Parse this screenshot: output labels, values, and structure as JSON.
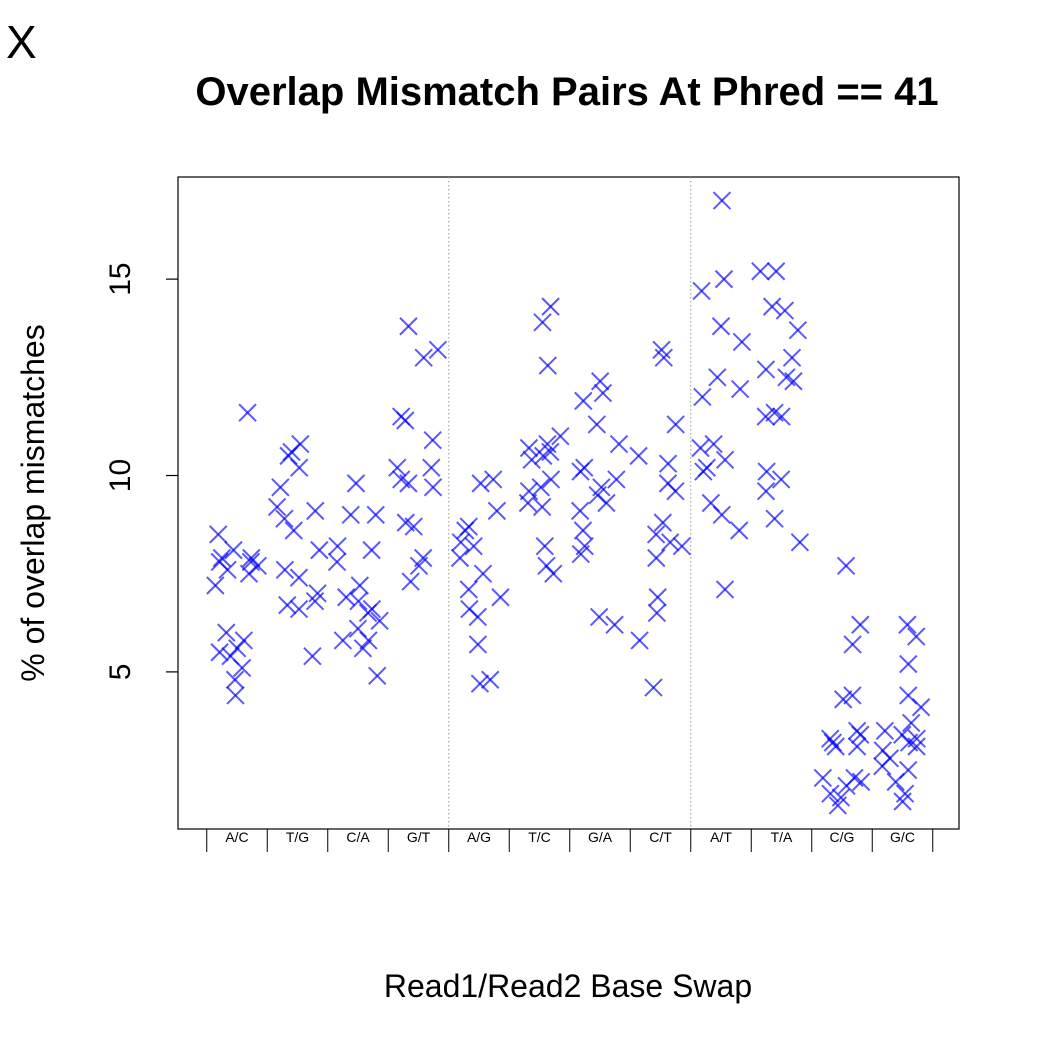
{
  "panel_letter": "X",
  "chart_data": {
    "type": "scatter",
    "title": "Overlap Mismatch Pairs At Phred == 41",
    "xlabel": "Read1/Read2 Base Swap",
    "ylabel": "% of overlap mismatches",
    "marker": "x",
    "marker_color": "#0000ff",
    "grid": false,
    "group_separators_after": [
      "G/T",
      "C/T"
    ],
    "ylim": [
      1.0,
      17.6
    ],
    "yticks": [
      5,
      10,
      15
    ],
    "categories": [
      "A/C",
      "T/G",
      "C/A",
      "G/T",
      "A/G",
      "T/C",
      "G/A",
      "C/T",
      "A/T",
      "T/A",
      "C/G",
      "G/C"
    ],
    "series": [
      {
        "values": [
          [
            11.6,
            8.5,
            8.1,
            7.9,
            7.9,
            7.8,
            7.8,
            7.7,
            7.6,
            7.5,
            7.2,
            6.0,
            5.8,
            5.6,
            5.5,
            5.4,
            5.1,
            4.8,
            4.4
          ],
          [
            10.8,
            10.6,
            10.5,
            10.2,
            9.7,
            9.2,
            9.1,
            8.9,
            8.6,
            8.1,
            7.6,
            7.4,
            7.0,
            6.8,
            6.7,
            6.6,
            5.4
          ],
          [
            9.8,
            9.0,
            9.0,
            8.2,
            8.1,
            7.8,
            7.2,
            6.9,
            6.8,
            6.6,
            6.5,
            6.3,
            6.1,
            5.8,
            5.8,
            5.6,
            4.9
          ],
          [
            13.8,
            13.2,
            13.0,
            11.5,
            11.4,
            10.9,
            10.2,
            10.2,
            9.9,
            9.8,
            9.7,
            8.8,
            8.7,
            7.9,
            7.7,
            7.3
          ],
          [
            9.9,
            9.8,
            9.1,
            8.7,
            8.6,
            8.3,
            8.2,
            7.9,
            7.5,
            7.1,
            6.9,
            6.6,
            6.4,
            5.7,
            4.8,
            4.7
          ],
          [
            14.3,
            13.9,
            12.8,
            11.0,
            10.8,
            10.7,
            10.6,
            10.5,
            10.4,
            9.9,
            9.7,
            9.6,
            9.3,
            9.2,
            8.2,
            7.7,
            7.5
          ],
          [
            12.4,
            12.1,
            11.9,
            11.3,
            10.8,
            10.2,
            10.1,
            9.9,
            9.7,
            9.5,
            9.3,
            9.1,
            8.6,
            8.2,
            8.0,
            6.4,
            6.2
          ],
          [
            13.2,
            13.0,
            11.3,
            10.5,
            10.3,
            9.8,
            9.6,
            8.8,
            8.5,
            8.3,
            8.2,
            7.9,
            6.9,
            6.5,
            5.8,
            4.6
          ],
          [
            17.0,
            15.0,
            14.7,
            13.8,
            13.4,
            12.5,
            12.2,
            12.0,
            10.8,
            10.7,
            10.4,
            10.2,
            10.1,
            9.3,
            9.0,
            8.6,
            7.1
          ],
          [
            15.2,
            15.2,
            14.3,
            14.2,
            13.7,
            13.0,
            12.7,
            12.5,
            12.4,
            11.6,
            11.5,
            11.5,
            10.1,
            9.9,
            9.6,
            8.9,
            8.3
          ],
          [
            7.7,
            6.2,
            5.7,
            4.4,
            4.3,
            3.5,
            3.4,
            3.3,
            3.2,
            3.1,
            3.1,
            2.3,
            2.3,
            2.2,
            2.1,
            1.9,
            1.8,
            1.6
          ],
          [
            6.2,
            5.9,
            5.2,
            4.4,
            4.1,
            3.7,
            3.5,
            3.4,
            3.3,
            3.2,
            3.1,
            3.0,
            2.8,
            2.6,
            2.5,
            2.2,
            1.9,
            1.7
          ]
        ]
      }
    ]
  }
}
